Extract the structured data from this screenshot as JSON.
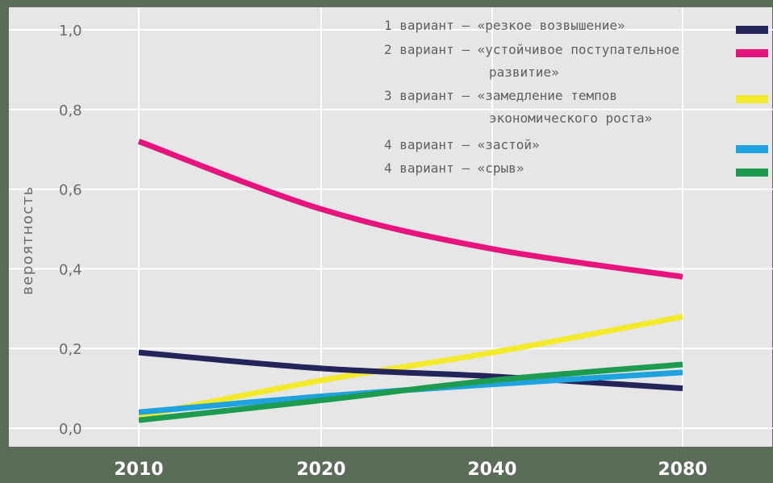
{
  "chart_data": {
    "type": "line",
    "ylabel": "вероятность",
    "xlabel": "",
    "x_categories": [
      "2010",
      "2020",
      "2040",
      "2080"
    ],
    "ylim": [
      0.0,
      1.0
    ],
    "y_ticks": [
      "0,0",
      "0,2",
      "0,4",
      "0,6",
      "0,8",
      "1,0"
    ],
    "grid": true,
    "legend_position": "top-right",
    "series": [
      {
        "name": "1 вариант — «резкое возвышение»",
        "legend_lines": [
          "1 вариант — «резкое возвышение»"
        ],
        "color": "#25245a",
        "values": [
          0.19,
          0.15,
          0.13,
          0.1
        ]
      },
      {
        "name": "2 вариант — «устойчивое поступательное развитие»",
        "legend_lines": [
          "2 вариант — «устойчивое поступательное",
          "развитие»"
        ],
        "color": "#e6147c",
        "values": [
          0.72,
          0.55,
          0.45,
          0.38
        ]
      },
      {
        "name": "3 вариант — «замедление темпов экономического роста»",
        "legend_lines": [
          "3 вариант — «замедление темпов",
          "экономического роста»"
        ],
        "color": "#f2ea2a",
        "values": [
          0.03,
          0.12,
          0.19,
          0.28
        ]
      },
      {
        "name": "4 вариант — «застой»",
        "legend_lines": [
          "4 вариант — «застой»"
        ],
        "color": "#1ea3df",
        "values": [
          0.04,
          0.08,
          0.11,
          0.14
        ]
      },
      {
        "name": "4 вариант — «срыв»",
        "legend_lines": [
          "4 вариант — «срыв»"
        ],
        "color": "#1d9b4f",
        "values": [
          0.02,
          0.07,
          0.12,
          0.16
        ]
      }
    ]
  },
  "colors": {
    "plot_background": "#e6e6e6",
    "frame_band": "#5b6c58",
    "gridline": "#ffffff"
  }
}
